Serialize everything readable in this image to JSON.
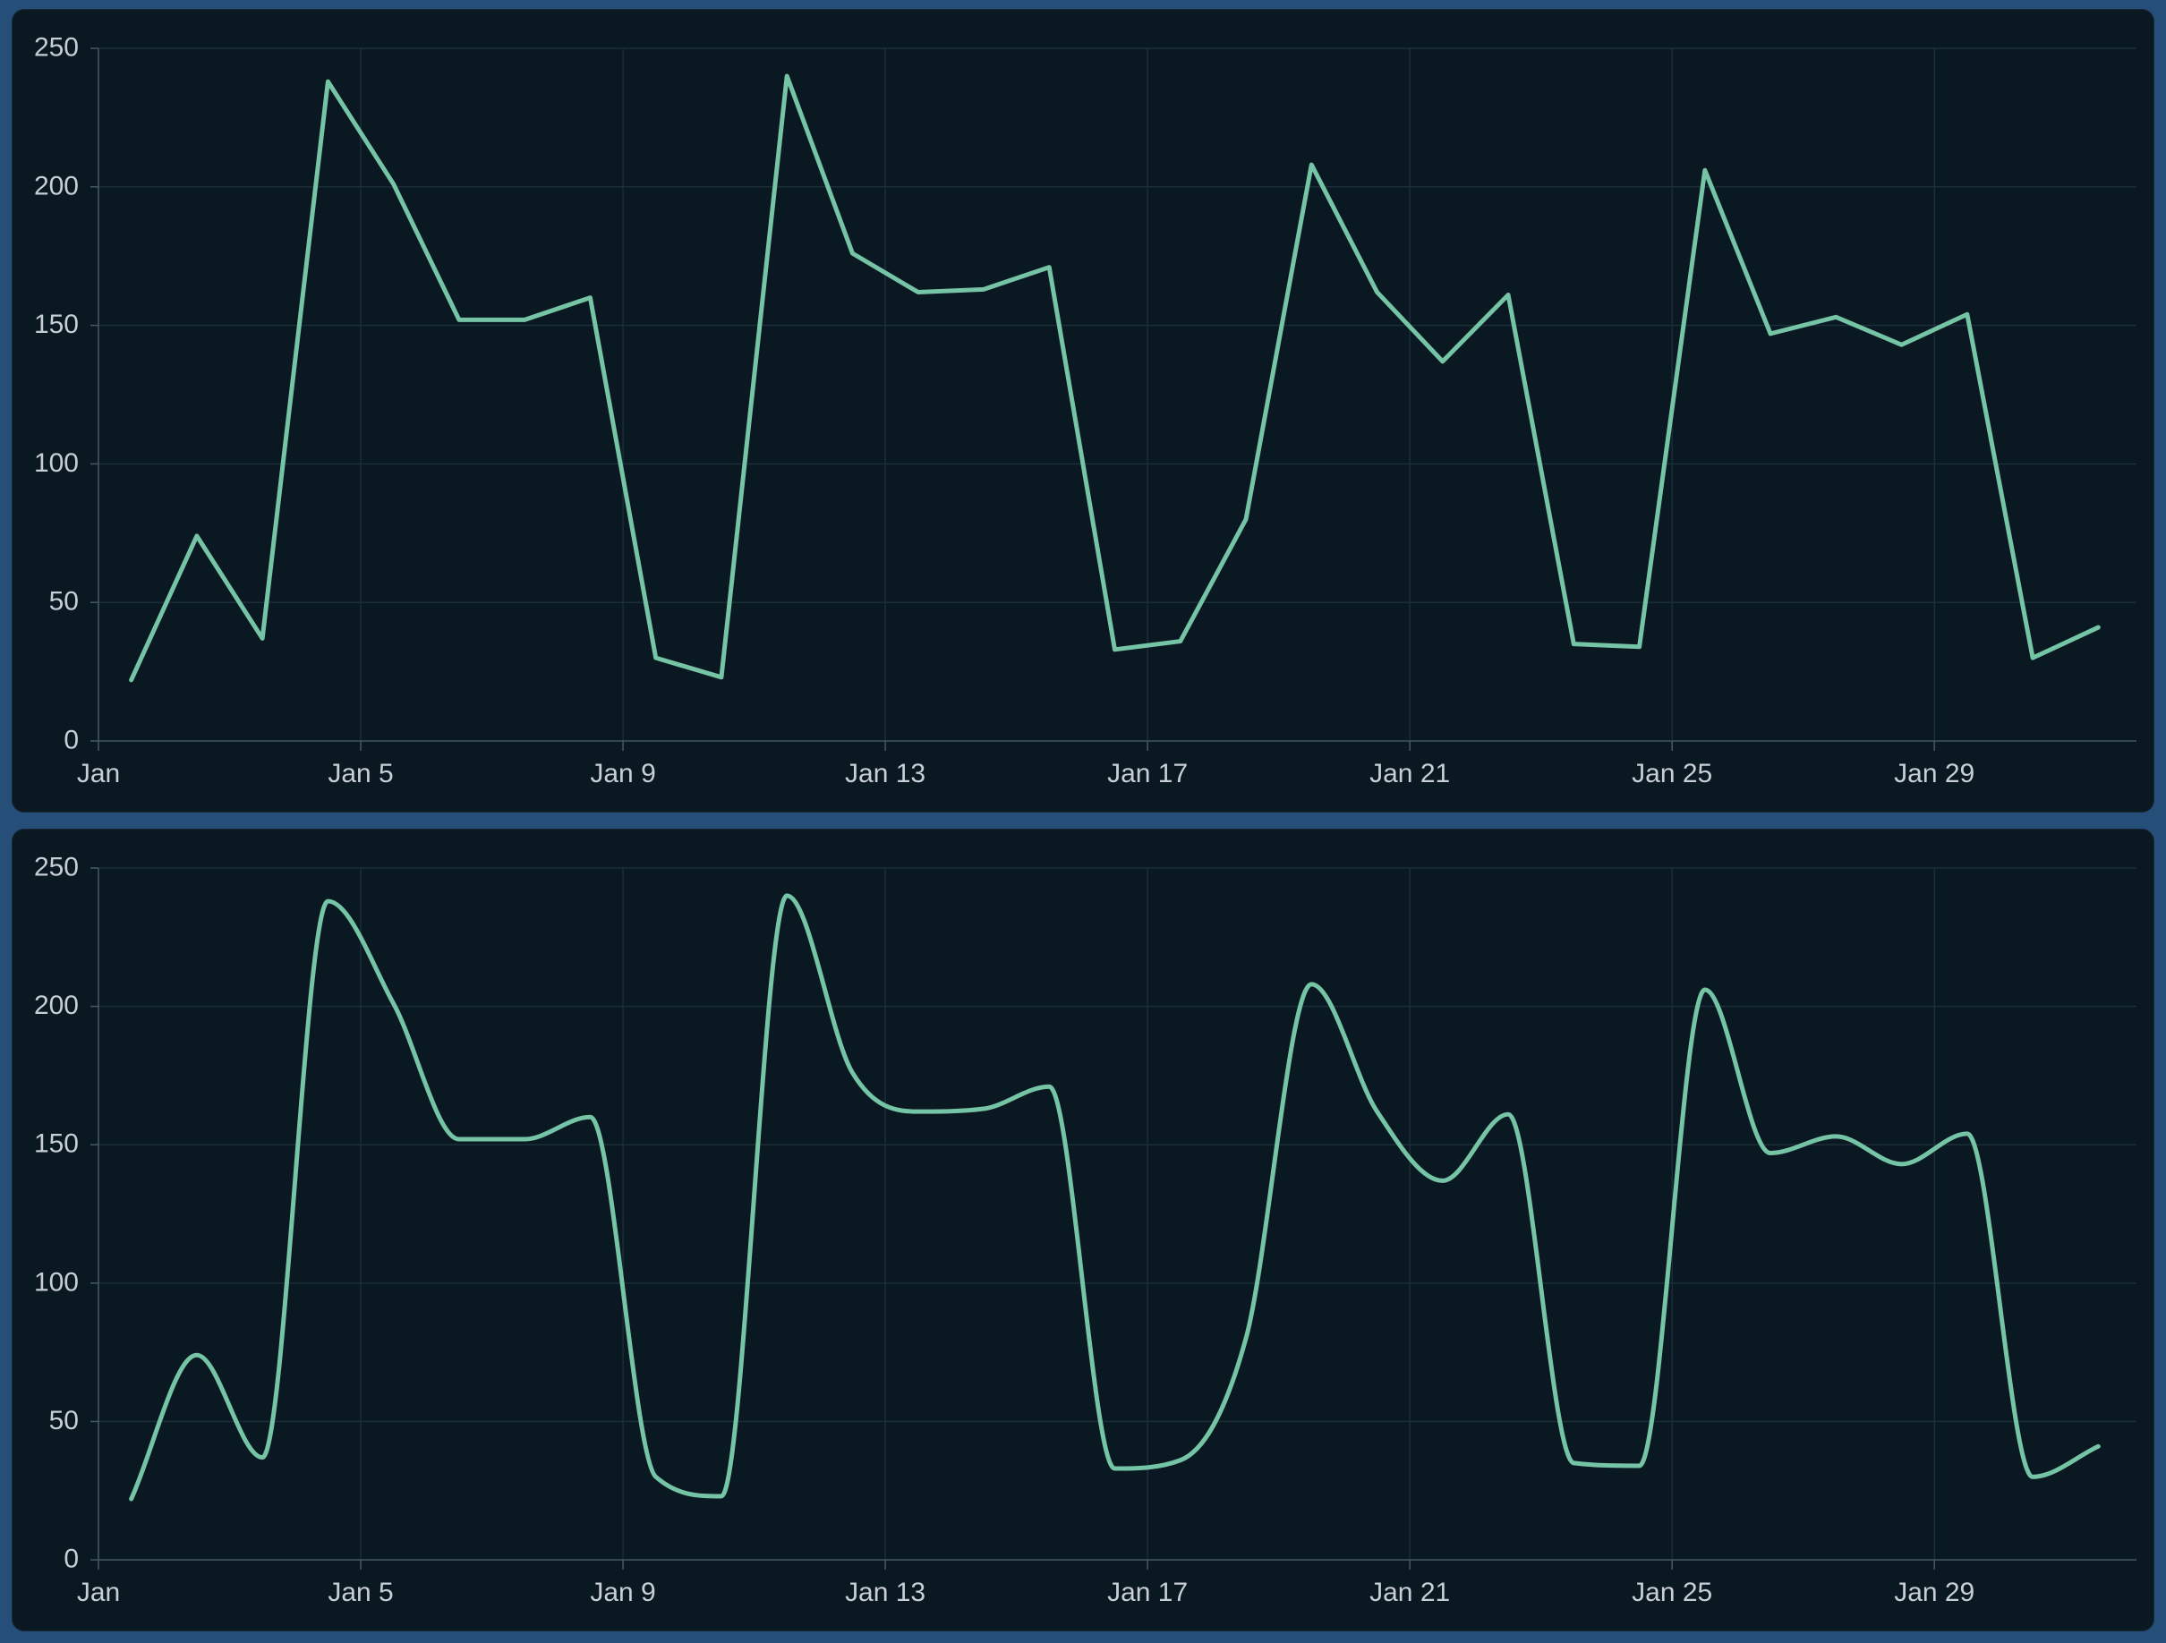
{
  "window": {
    "background": "#254e78"
  },
  "theme": {
    "panel_bg": "#0a1822",
    "grid_color": "#1d2f3a",
    "axis_color": "#44555f",
    "tick_label_color": "#c7ced5",
    "line_color": "#76c4a6",
    "line_width": 5,
    "tick_font_size": 30
  },
  "chart_data": [
    {
      "type": "line",
      "name": "daily-values-linear",
      "interpolation": "linear",
      "title": "",
      "xlabel": "",
      "ylabel": "",
      "ylim": [
        0,
        250
      ],
      "grid": true,
      "legend": "none",
      "y_ticks": [
        0,
        50,
        100,
        150,
        200,
        250
      ],
      "y_tick_labels": [
        "0",
        "50",
        "100",
        "150",
        "200",
        "250"
      ],
      "x_tick_days": [
        1,
        5,
        9,
        13,
        17,
        21,
        25,
        29
      ],
      "x_tick_labels": [
        "Jan",
        "Jan 5",
        "Jan 9",
        "Jan 13",
        "Jan 17",
        "Jan 21",
        "Jan 25",
        "Jan 29"
      ],
      "x": [
        "Jan 1",
        "Jan 2",
        "Jan 3",
        "Jan 4",
        "Jan 5",
        "Jan 6",
        "Jan 7",
        "Jan 8",
        "Jan 9",
        "Jan 10",
        "Jan 11",
        "Jan 12",
        "Jan 13",
        "Jan 14",
        "Jan 15",
        "Jan 16",
        "Jan 17",
        "Jan 18",
        "Jan 19",
        "Jan 20",
        "Jan 21",
        "Jan 22",
        "Jan 23",
        "Jan 24",
        "Jan 25",
        "Jan 26",
        "Jan 27",
        "Jan 28",
        "Jan 29",
        "Jan 30",
        "Jan 31"
      ],
      "values": [
        22,
        74,
        37,
        238,
        201,
        152,
        152,
        160,
        30,
        23,
        240,
        176,
        162,
        163,
        171,
        33,
        36,
        80,
        208,
        162,
        137,
        161,
        35,
        34,
        206,
        147,
        153,
        143,
        154,
        30,
        41
      ]
    },
    {
      "type": "line",
      "name": "daily-values-smoothed",
      "interpolation": "monotone-spline",
      "title": "",
      "xlabel": "",
      "ylabel": "",
      "ylim": [
        0,
        250
      ],
      "grid": true,
      "legend": "none",
      "y_ticks": [
        0,
        50,
        100,
        150,
        200,
        250
      ],
      "y_tick_labels": [
        "0",
        "50",
        "100",
        "150",
        "200",
        "250"
      ],
      "x_tick_days": [
        1,
        5,
        9,
        13,
        17,
        21,
        25,
        29
      ],
      "x_tick_labels": [
        "Jan",
        "Jan 5",
        "Jan 9",
        "Jan 13",
        "Jan 17",
        "Jan 21",
        "Jan 25",
        "Jan 29"
      ],
      "x": [
        "Jan 1",
        "Jan 2",
        "Jan 3",
        "Jan 4",
        "Jan 5",
        "Jan 6",
        "Jan 7",
        "Jan 8",
        "Jan 9",
        "Jan 10",
        "Jan 11",
        "Jan 12",
        "Jan 13",
        "Jan 14",
        "Jan 15",
        "Jan 16",
        "Jan 17",
        "Jan 18",
        "Jan 19",
        "Jan 20",
        "Jan 21",
        "Jan 22",
        "Jan 23",
        "Jan 24",
        "Jan 25",
        "Jan 26",
        "Jan 27",
        "Jan 28",
        "Jan 29",
        "Jan 30",
        "Jan 31"
      ],
      "values": [
        22,
        74,
        37,
        238,
        201,
        152,
        152,
        160,
        30,
        23,
        240,
        176,
        162,
        163,
        171,
        33,
        36,
        80,
        208,
        162,
        137,
        161,
        35,
        34,
        206,
        147,
        153,
        143,
        154,
        30,
        41
      ]
    }
  ]
}
